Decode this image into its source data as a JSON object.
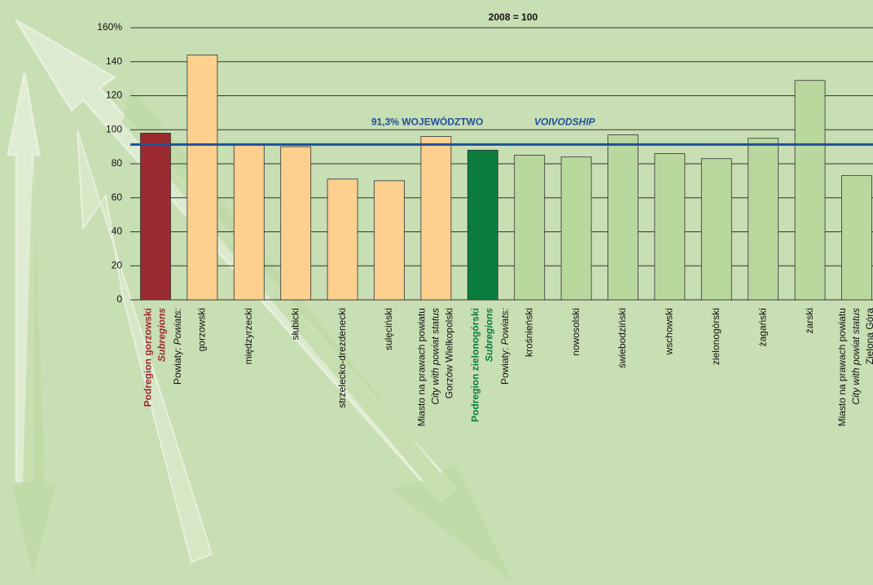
{
  "chart_data": {
    "type": "bar",
    "title": "2008 = 100",
    "categories": [
      [
        "Podregion gorzowski",
        "Subregions"
      ],
      [
        "gorzowski"
      ],
      [
        "międzyrzecki"
      ],
      [
        "słubicki"
      ],
      [
        "strzelecko-drezdenecki"
      ],
      [
        "sulęciński"
      ],
      [
        "Miasto na prawach powiatu",
        "City with powiat status",
        "Gorzów Wielkopolski"
      ],
      [
        "Podregion zielonogórski",
        "Subregions"
      ],
      [
        "krośnieński"
      ],
      [
        "nowosolski"
      ],
      [
        "świebodziński"
      ],
      [
        "wschowski"
      ],
      [
        "zielonogórski"
      ],
      [
        "żagański"
      ],
      [
        "żarski"
      ],
      [
        "Miasto na prawach powiatu",
        "City with powiat status",
        "Zielona Góra"
      ]
    ],
    "values": [
      98,
      144,
      91,
      90,
      71,
      70,
      96,
      88,
      85,
      84,
      97,
      86,
      83,
      95,
      129,
      73
    ],
    "colors": [
      "#9b2a30",
      "#fdd08f",
      "#fdd08f",
      "#fdd08f",
      "#fdd08f",
      "#fdd08f",
      "#fdd08f",
      "#0a7d3e",
      "#b9d89e",
      "#b9d89e",
      "#b9d89e",
      "#b9d89e",
      "#b9d89e",
      "#b9d89e",
      "#b9d89e",
      "#b9d89e"
    ],
    "powiats_label": [
      "Powiaty:",
      "Powiats:"
    ],
    "reference_line": {
      "value": 91.3,
      "label": "91,3% WOJEWÓDZTWO",
      "label_en": "VOIVODSHIP",
      "color": "#1f4f9c"
    },
    "ylim": [
      0,
      160
    ],
    "yticks": [
      0,
      20,
      40,
      60,
      80,
      100,
      120,
      140,
      {
        "value": 160,
        "label": "160%"
      }
    ],
    "grid": true
  }
}
